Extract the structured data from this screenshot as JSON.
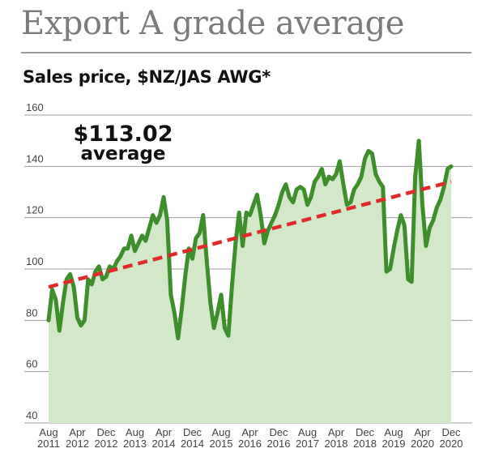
{
  "title": "Export A grade average",
  "subtitle": "Sales price, $NZ/JAS AWG*",
  "chart_data": {
    "type": "line",
    "ylim": [
      40,
      160
    ],
    "yticks": [
      40,
      60,
      80,
      100,
      120,
      140,
      160
    ],
    "grid": true,
    "x_tick_labels": [
      [
        "Aug",
        "2011"
      ],
      [
        "Apr",
        "2012"
      ],
      [
        "Dec",
        "2012"
      ],
      [
        "Aug",
        "2013"
      ],
      [
        "Apr",
        "2014"
      ],
      [
        "Dec",
        "2014"
      ],
      [
        "Aug",
        "2015"
      ],
      [
        "Apr",
        "2016"
      ],
      [
        "Dec",
        "2016"
      ],
      [
        "Aug",
        "2017"
      ],
      [
        "Apr",
        "2018"
      ],
      [
        "Dec",
        "2018"
      ],
      [
        "Aug",
        "2019"
      ],
      [
        "Apr",
        "2020"
      ],
      [
        "Dec",
        "2020"
      ]
    ],
    "annotation": {
      "line1": "$113.02",
      "line2": "average"
    },
    "series": [
      {
        "color": "#3e8f2c",
        "fill": "#d3e8c9",
        "points": [
          [
            0,
            80
          ],
          [
            1,
            92
          ],
          [
            2,
            88
          ],
          [
            3,
            76
          ],
          [
            4,
            87
          ],
          [
            5,
            96
          ],
          [
            6,
            98
          ],
          [
            7,
            93
          ],
          [
            8,
            81
          ],
          [
            9,
            78
          ],
          [
            10,
            80
          ],
          [
            11,
            96
          ],
          [
            12,
            94
          ],
          [
            13,
            99
          ],
          [
            14,
            101
          ],
          [
            15,
            96
          ],
          [
            16,
            97
          ],
          [
            17,
            101
          ],
          [
            18,
            100
          ],
          [
            19,
            103
          ],
          [
            20,
            105
          ],
          [
            21,
            108
          ],
          [
            22,
            108
          ],
          [
            23,
            113
          ],
          [
            24,
            107
          ],
          [
            25,
            110
          ],
          [
            26,
            113
          ],
          [
            27,
            111
          ],
          [
            28,
            116
          ],
          [
            29,
            121
          ],
          [
            30,
            118
          ],
          [
            31,
            121
          ],
          [
            32,
            128
          ],
          [
            33,
            119
          ],
          [
            34,
            90
          ],
          [
            35,
            83
          ],
          [
            36,
            73
          ],
          [
            37,
            84
          ],
          [
            38,
            97
          ],
          [
            39,
            108
          ],
          [
            40,
            104
          ],
          [
            41,
            112
          ],
          [
            42,
            114
          ],
          [
            43,
            121
          ],
          [
            44,
            103
          ],
          [
            45,
            87
          ],
          [
            46,
            77
          ],
          [
            47,
            83
          ],
          [
            48,
            90
          ],
          [
            49,
            77
          ],
          [
            50,
            74
          ],
          [
            51,
            93
          ],
          [
            52,
            110
          ],
          [
            53,
            122
          ],
          [
            54,
            109
          ],
          [
            55,
            122
          ],
          [
            56,
            121
          ],
          [
            57,
            125
          ],
          [
            58,
            129
          ],
          [
            59,
            121
          ],
          [
            60,
            110
          ],
          [
            61,
            115
          ],
          [
            62,
            118
          ],
          [
            63,
            121
          ],
          [
            64,
            125
          ],
          [
            65,
            130
          ],
          [
            66,
            133
          ],
          [
            67,
            128
          ],
          [
            68,
            126
          ],
          [
            69,
            131
          ],
          [
            70,
            132
          ],
          [
            71,
            131
          ],
          [
            72,
            125
          ],
          [
            73,
            128
          ],
          [
            74,
            134
          ],
          [
            75,
            136
          ],
          [
            76,
            139
          ],
          [
            77,
            133
          ],
          [
            78,
            136
          ],
          [
            79,
            135
          ],
          [
            80,
            137
          ],
          [
            81,
            142
          ],
          [
            82,
            133
          ],
          [
            83,
            125
          ],
          [
            84,
            126
          ],
          [
            85,
            131
          ],
          [
            86,
            133
          ],
          [
            87,
            136
          ],
          [
            88,
            143
          ],
          [
            89,
            146
          ],
          [
            90,
            145
          ],
          [
            91,
            137
          ],
          [
            92,
            134
          ],
          [
            93,
            132
          ],
          [
            94,
            99
          ],
          [
            95,
            100
          ],
          [
            96,
            108
          ],
          [
            97,
            115
          ],
          [
            98,
            121
          ],
          [
            99,
            117
          ],
          [
            100,
            96
          ],
          [
            101,
            95
          ],
          [
            102,
            136
          ],
          [
            103,
            150
          ],
          [
            104,
            125
          ],
          [
            105,
            109
          ],
          [
            106,
            116
          ],
          [
            107,
            119
          ],
          [
            108,
            124
          ],
          [
            109,
            127
          ],
          [
            110,
            132
          ],
          [
            111,
            139
          ],
          [
            112,
            140
          ]
        ]
      }
    ],
    "trend_line": {
      "color": "#e02a2a",
      "start": [
        0,
        93
      ],
      "end": [
        112,
        134
      ]
    }
  }
}
